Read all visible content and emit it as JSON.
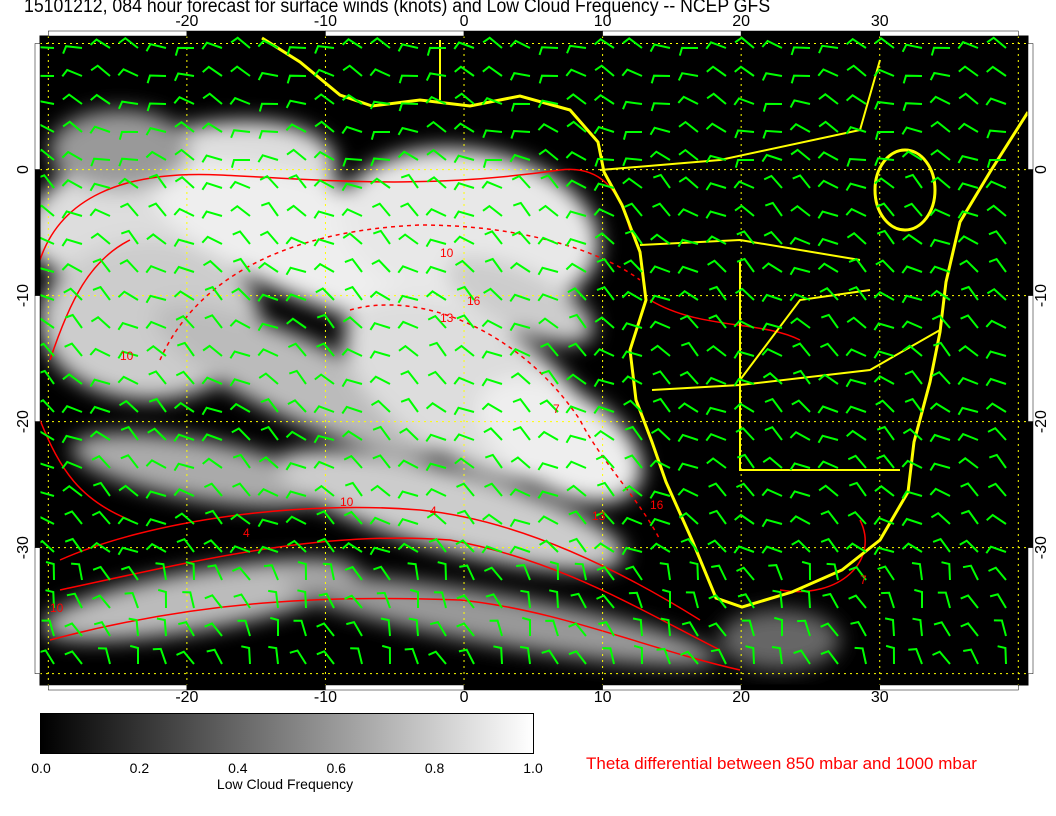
{
  "title": "15101212, 084 hour forecast for surface winds (knots) and Low Cloud Frequency -- NCEP GFS",
  "map": {
    "lon_range": [
      -30.6,
      40.7
    ],
    "lat_range": [
      -40.9,
      10.6
    ],
    "lon_ticks": [
      "-20",
      "-10",
      "0",
      "10",
      "20",
      "30"
    ],
    "lat_ticks": [
      "0",
      "-10",
      "-20",
      "-30"
    ],
    "colors": {
      "background": "#000000",
      "coastline": "#ffff00",
      "contour": "#ff0000",
      "wind_barbs": "#00ff00",
      "grid": "#ffff00"
    },
    "contour_labels": [
      "10",
      "13",
      "16",
      "10",
      "7",
      "4",
      "10",
      "16",
      "13",
      "10",
      "7",
      "4"
    ]
  },
  "colorbar": {
    "ticks": [
      "0.0",
      "0.2",
      "0.4",
      "0.6",
      "0.8",
      "1.0"
    ],
    "label": "Low Cloud Frequency"
  },
  "contour_title": "Theta differential between 850 mbar and 1000 mbar"
}
